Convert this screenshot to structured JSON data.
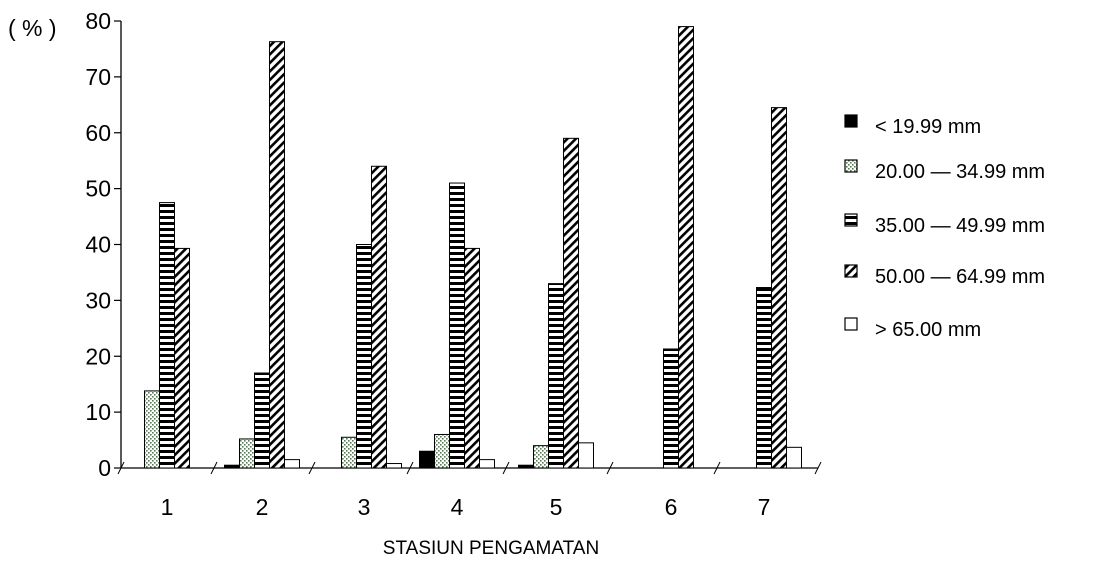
{
  "chart_data": {
    "type": "bar",
    "ylabel": "( % )",
    "xlabel": "STASIUN PENGAMATAN",
    "ylim": [
      0,
      80
    ],
    "yticks": [
      0,
      10,
      20,
      30,
      40,
      50,
      60,
      70,
      80
    ],
    "categories": [
      "1",
      "2",
      "3",
      "4",
      "5",
      "6",
      "7"
    ],
    "legend_position": "right",
    "series": [
      {
        "name": "< 19.99 mm",
        "pattern": "solid-black",
        "values": [
          0,
          0.5,
          0,
          3,
          0.5,
          0,
          0
        ]
      },
      {
        "name": "20.00 — 34.99 mm",
        "pattern": "dotted",
        "values": [
          13.8,
          5.2,
          5.5,
          6,
          4,
          0,
          0
        ]
      },
      {
        "name": "35.00 — 49.99 mm",
        "pattern": "horizontal-lines",
        "values": [
          47.5,
          17,
          40,
          51,
          33,
          21.3,
          32.3
        ]
      },
      {
        "name": "50.00 — 64.99 mm",
        "pattern": "diagonal-lines",
        "values": [
          39.3,
          76.3,
          54,
          39.3,
          59,
          79,
          64.5
        ]
      },
      {
        "name": "> 65.00 mm",
        "pattern": "white",
        "values": [
          0,
          1.5,
          0.8,
          1.5,
          4.5,
          0,
          3.7
        ]
      }
    ]
  }
}
